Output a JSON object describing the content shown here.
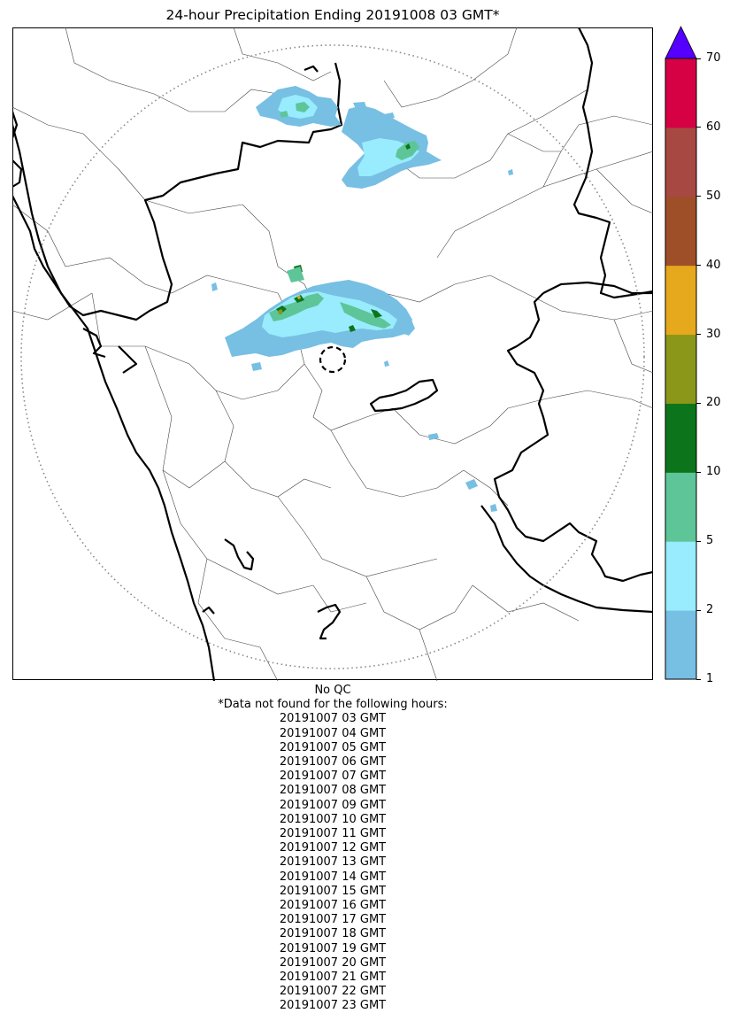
{
  "title": "24-hour Precipitation Ending 20191008 03 GMT*",
  "colorbar": {
    "ticks": [
      "1",
      "2",
      "5",
      "10",
      "20",
      "30",
      "40",
      "50",
      "60",
      "70"
    ],
    "colors": [
      "#77bfe3",
      "#98ecfd",
      "#5dc598",
      "#0c751c",
      "#8b9719",
      "#e6a81c",
      "#9f4f28",
      "#a84842",
      "#d60045"
    ],
    "over_color": "#5500ff",
    "unit": ""
  },
  "map": {
    "feature": "radar coverage ring (dotted) with dashed radar site marker",
    "border_color": "#000000",
    "district_line_color": "#333333"
  },
  "notes": {
    "qc": "No QC",
    "missing_header": "*Data not found for the following hours:",
    "missing_hours": [
      "20191007 03 GMT",
      "20191007 04 GMT",
      "20191007 05 GMT",
      "20191007 06 GMT",
      "20191007 07 GMT",
      "20191007 08 GMT",
      "20191007 09 GMT",
      "20191007 10 GMT",
      "20191007 11 GMT",
      "20191007 12 GMT",
      "20191007 13 GMT",
      "20191007 14 GMT",
      "20191007 15 GMT",
      "20191007 16 GMT",
      "20191007 17 GMT",
      "20191007 18 GMT",
      "20191007 19 GMT",
      "20191007 20 GMT",
      "20191007 21 GMT",
      "20191007 22 GMT",
      "20191007 23 GMT"
    ]
  }
}
